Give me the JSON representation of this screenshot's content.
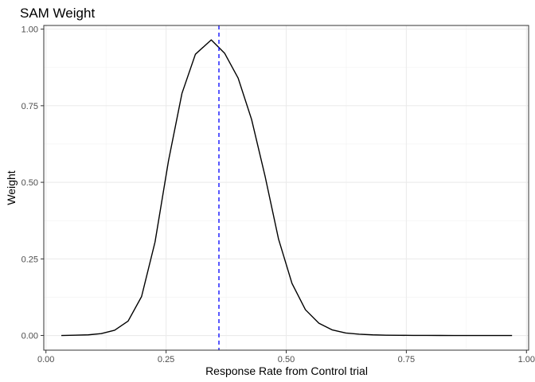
{
  "chart_data": {
    "type": "line",
    "title": "SAM Weight",
    "xlabel": "Response Rate from Control trial",
    "ylabel": "Weight",
    "xlim": [
      -0.0045,
      1.0045
    ],
    "ylim": [
      -0.048,
      1.012
    ],
    "x_ticks": [
      0.0,
      0.25,
      0.5,
      0.75,
      1.0
    ],
    "x_tick_labels": [
      "0.00",
      "0.25",
      "0.50",
      "0.75",
      "1.00"
    ],
    "y_ticks": [
      0.0,
      0.25,
      0.5,
      0.75,
      1.0
    ],
    "y_tick_labels": [
      "0.00",
      "0.25",
      "0.50",
      "0.75",
      "1.00"
    ],
    "grid": true,
    "vline": {
      "x": 0.36,
      "color": "#0000ff",
      "style": "dashed"
    },
    "series": [
      {
        "color": "#000000",
        "x": [
          0.032,
          0.06,
          0.088,
          0.115,
          0.143,
          0.171,
          0.199,
          0.227,
          0.255,
          0.283,
          0.311,
          0.344,
          0.372,
          0.4,
          0.428,
          0.456,
          0.484,
          0.512,
          0.54,
          0.568,
          0.596,
          0.624,
          0.652,
          0.68,
          0.708,
          0.736,
          0.764,
          0.792,
          0.82,
          0.848,
          0.876,
          0.904,
          0.932,
          0.97
        ],
        "y": [
          0.0,
          0.001,
          0.002,
          0.006,
          0.017,
          0.047,
          0.127,
          0.305,
          0.57,
          0.79,
          0.918,
          0.965,
          0.921,
          0.84,
          0.705,
          0.52,
          0.315,
          0.17,
          0.084,
          0.04,
          0.018,
          0.008,
          0.004,
          0.002,
          0.001,
          0.0005,
          0.0003,
          0.0002,
          0.0001,
          0.0,
          0.0,
          0.0,
          0.0,
          0.0
        ]
      }
    ]
  }
}
